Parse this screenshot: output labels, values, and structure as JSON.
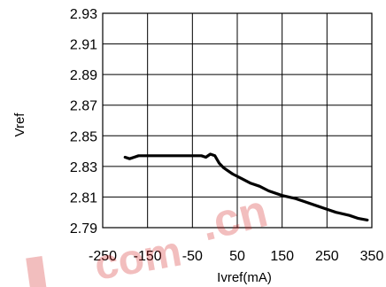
{
  "chart_data": {
    "type": "line",
    "xlabel": "Ivref(mA)",
    "ylabel": "Vref",
    "xlim": [
      -250,
      350
    ],
    "ylim": [
      2.79,
      2.93
    ],
    "x_ticks": [
      "-250",
      "-150",
      "-50",
      "50",
      "150",
      "250",
      "350"
    ],
    "y_ticks": [
      "2.93",
      "2.91",
      "2.89",
      "2.87",
      "2.85",
      "2.83",
      "2.81",
      "2.79"
    ],
    "x_tick_values": [
      -250,
      -150,
      -50,
      50,
      150,
      250,
      350
    ],
    "y_tick_values": [
      2.93,
      2.91,
      2.89,
      2.87,
      2.85,
      2.83,
      2.81,
      2.79
    ],
    "grid": true,
    "series": [
      {
        "color": "#000000",
        "x": [
          -200,
          -190,
          -180,
          -170,
          -150,
          -100,
          -50,
          -30,
          -20,
          -10,
          0,
          10,
          20,
          40,
          60,
          80,
          100,
          120,
          150,
          180,
          200,
          230,
          250,
          270,
          300,
          320,
          340
        ],
        "y": [
          2.836,
          2.835,
          2.836,
          2.837,
          2.837,
          2.837,
          2.837,
          2.837,
          2.836,
          2.838,
          2.837,
          2.832,
          2.829,
          2.825,
          2.822,
          2.819,
          2.817,
          2.814,
          2.811,
          2.809,
          2.807,
          2.804,
          2.802,
          2.8,
          2.798,
          2.796,
          2.795
        ]
      }
    ]
  }
}
